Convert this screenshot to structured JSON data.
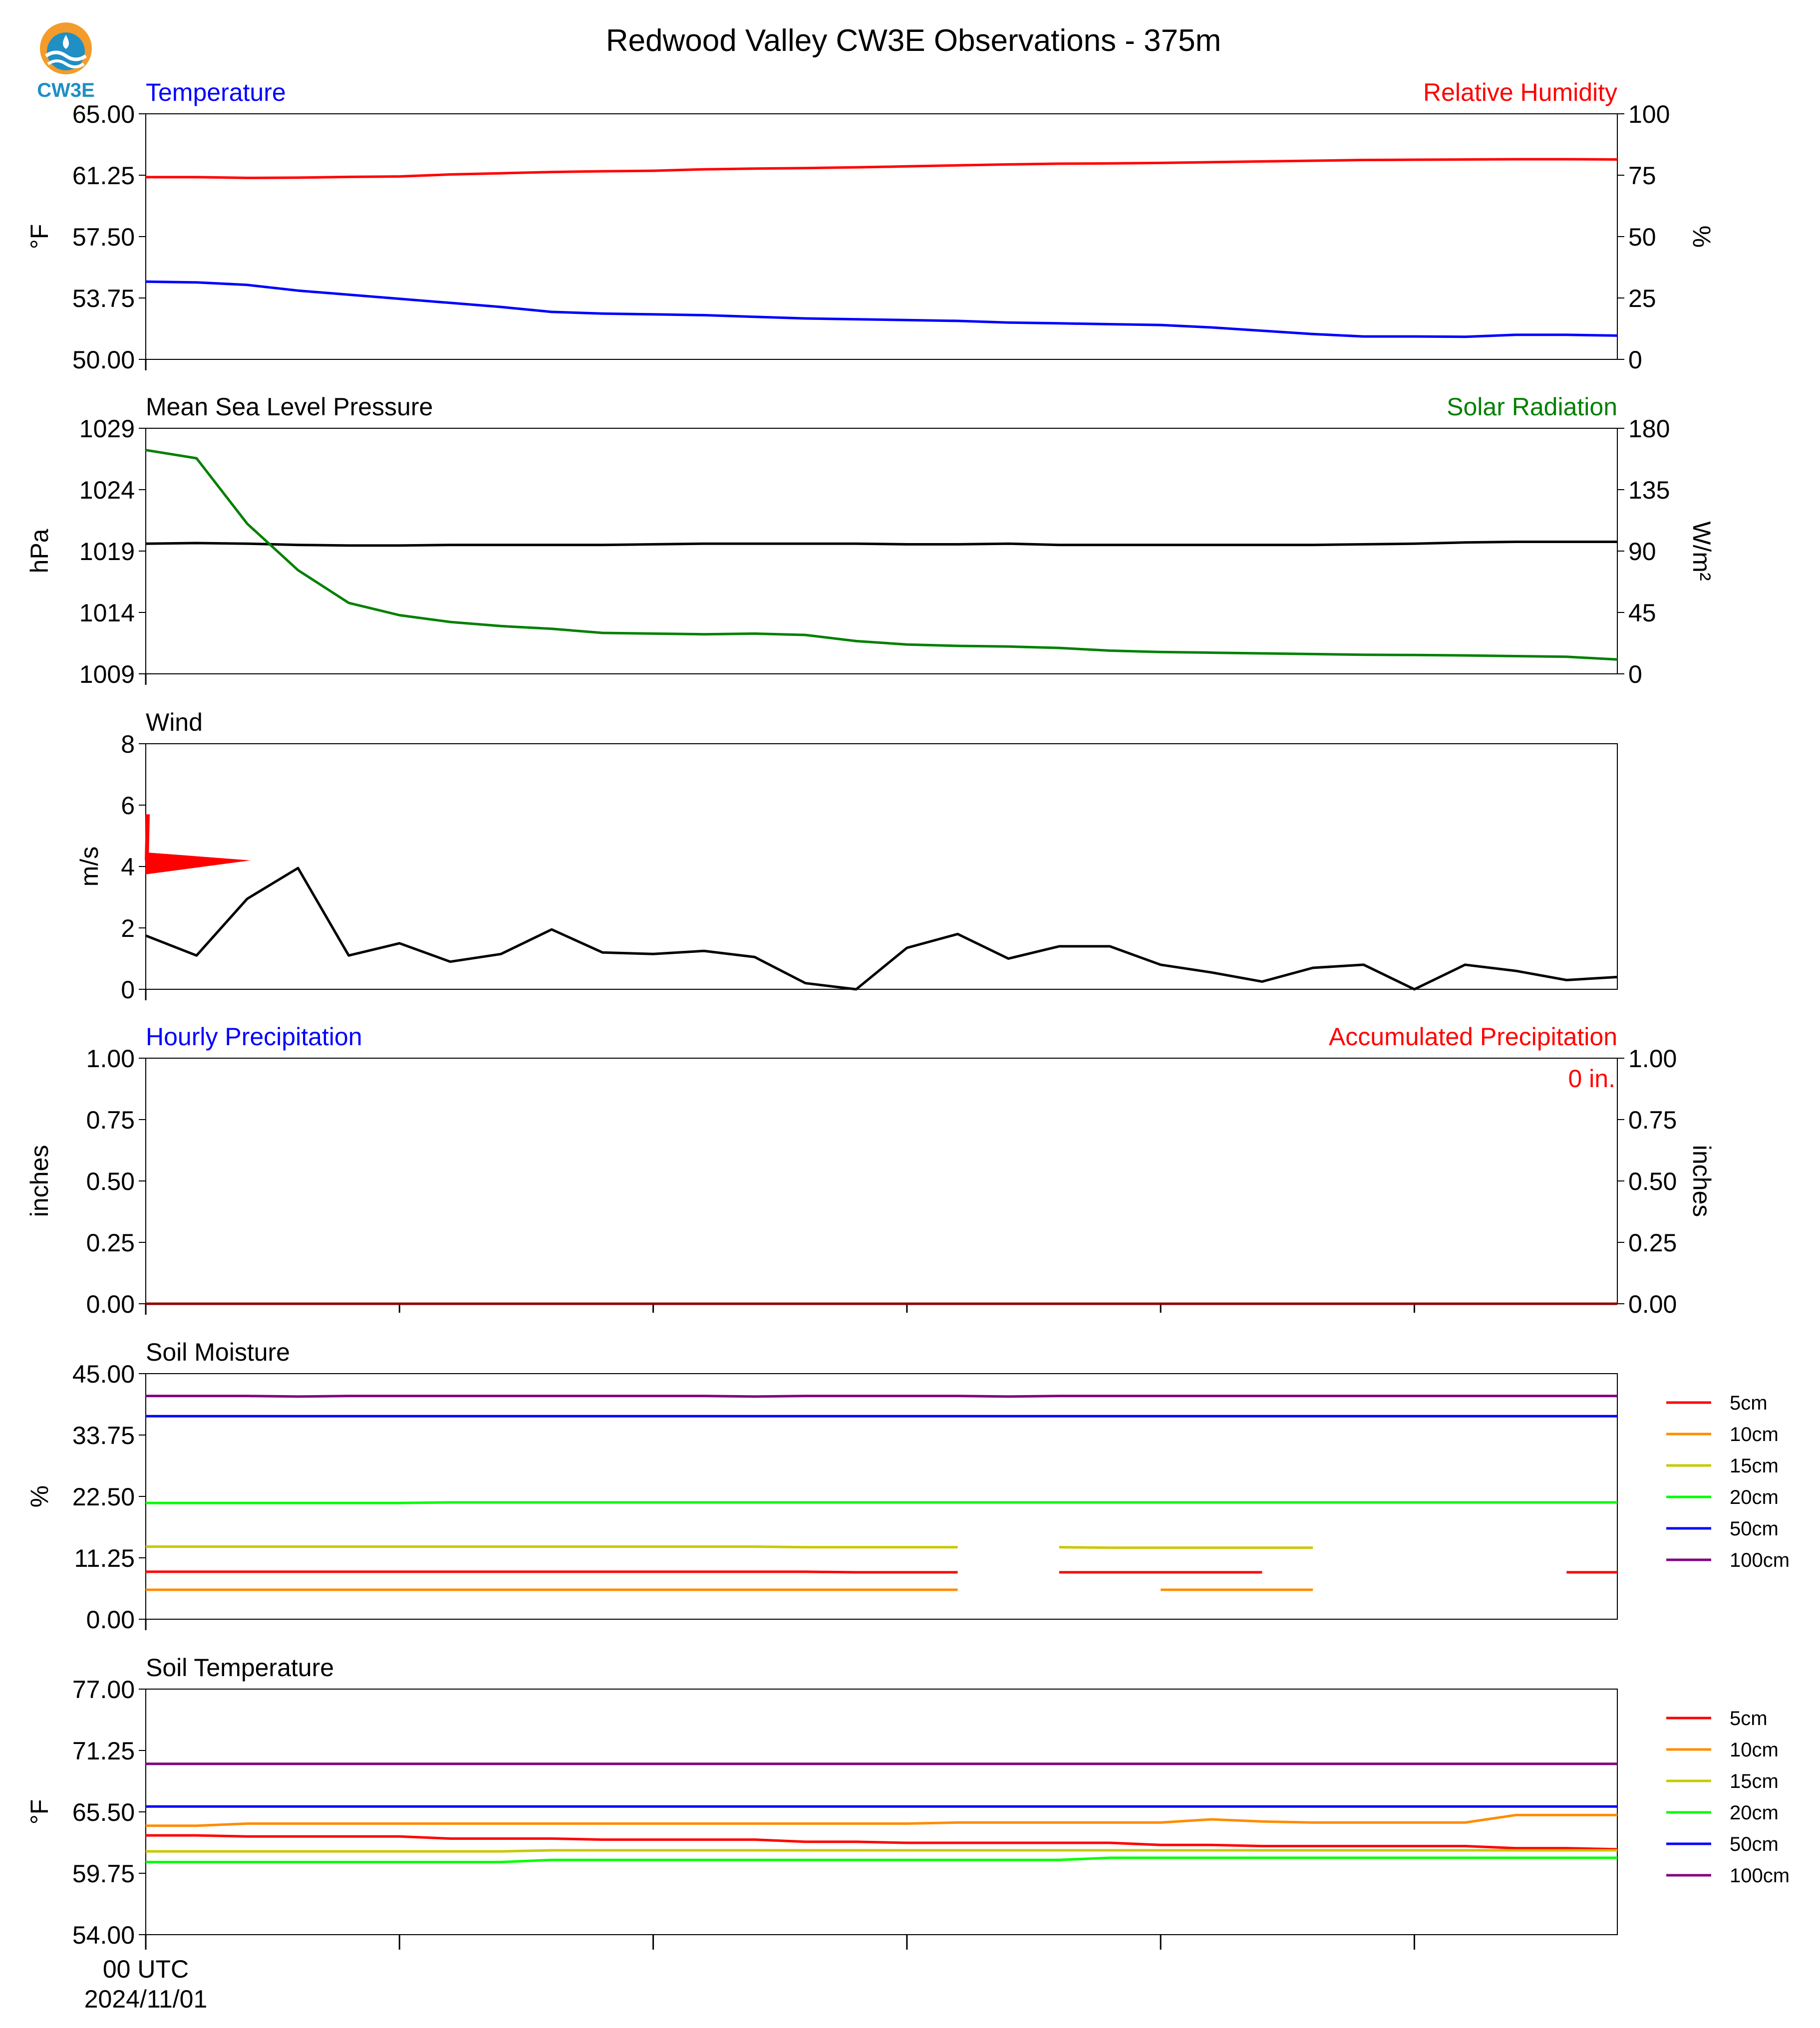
{
  "title": "Redwood Valley CW3E Observations - 375m",
  "logo_text": "CW3E",
  "x_axis": {
    "tick_labels": [
      "00 UTC\n2024/11/01",
      "",
      "",
      "",
      "",
      ""
    ],
    "n_points": 30
  },
  "colors": {
    "blue": "#0000ff",
    "red": "#ff0000",
    "green": "#008000",
    "black": "#000000",
    "soil_5cm": "#ff0000",
    "soil_10cm": "#ff8c00",
    "soil_15cm": "#c8c800",
    "soil_20cm": "#00ff00",
    "soil_50cm": "#0000ff",
    "soil_100cm": "#800080"
  },
  "chart_data": [
    {
      "id": "temp_rh",
      "type": "line",
      "title_left": "Temperature",
      "title_right": "Relative Humidity",
      "ylabel_left": "°F",
      "ylabel_right": "%",
      "ylim_left": [
        50,
        65
      ],
      "ylim_right": [
        0,
        100
      ],
      "yticks_left": [
        "50.00",
        "53.75",
        "57.50",
        "61.25",
        "65.00"
      ],
      "yticks_right": [
        "0",
        "25",
        "50",
        "75",
        "100"
      ],
      "series": [
        {
          "name": "Temperature",
          "axis": "left",
          "color": "#0000ff",
          "values": [
            54.75,
            54.7,
            54.55,
            54.2,
            53.95,
            53.7,
            53.45,
            53.2,
            52.9,
            52.8,
            52.75,
            52.7,
            52.6,
            52.5,
            52.45,
            52.4,
            52.35,
            52.25,
            52.2,
            52.15,
            52.1,
            51.95,
            51.75,
            51.55,
            51.4,
            51.4,
            51.38,
            51.5,
            51.5,
            51.45
          ]
        },
        {
          "name": "Relative Humidity",
          "axis": "right",
          "color": "#ff0000",
          "values": [
            74.2,
            74.2,
            73.9,
            74.0,
            74.3,
            74.5,
            75.3,
            75.8,
            76.3,
            76.6,
            76.8,
            77.4,
            77.7,
            77.9,
            78.2,
            78.6,
            79.0,
            79.4,
            79.7,
            79.8,
            80.0,
            80.3,
            80.6,
            80.9,
            81.2,
            81.3,
            81.4,
            81.5,
            81.5,
            81.4
          ]
        }
      ]
    },
    {
      "id": "mslp_solar",
      "type": "line",
      "title_left": "Mean Sea Level Pressure",
      "title_right": "Solar Radiation",
      "ylabel_left": "hPa",
      "ylabel_right": "W/m²",
      "ylim_left": [
        1009,
        1029
      ],
      "ylim_right": [
        0,
        180
      ],
      "yticks_left": [
        "1009",
        "1014",
        "1019",
        "1024",
        "1029"
      ],
      "yticks_right": [
        "0",
        "45",
        "90",
        "135",
        "180"
      ],
      "series": [
        {
          "name": "Mean Sea Level Pressure",
          "axis": "left",
          "color": "#000000",
          "values": [
            1019.6,
            1019.65,
            1019.6,
            1019.5,
            1019.45,
            1019.45,
            1019.5,
            1019.5,
            1019.5,
            1019.5,
            1019.55,
            1019.6,
            1019.6,
            1019.6,
            1019.6,
            1019.55,
            1019.55,
            1019.6,
            1019.5,
            1019.5,
            1019.5,
            1019.5,
            1019.5,
            1019.5,
            1019.55,
            1019.6,
            1019.7,
            1019.75,
            1019.75,
            1019.75
          ]
        },
        {
          "name": "Solar Radiation",
          "axis": "right",
          "color": "#008000",
          "values": [
            164,
            158,
            110,
            76,
            52,
            43,
            38,
            35,
            33,
            30,
            29.5,
            29,
            29.5,
            28.5,
            24,
            21.5,
            20.5,
            20,
            19,
            17,
            16,
            15.5,
            15,
            14.5,
            14,
            13.8,
            13.5,
            13,
            12.5,
            10.5
          ]
        }
      ]
    },
    {
      "id": "wind",
      "type": "line",
      "title_left": "Wind",
      "ylabel_left": "m/s",
      "ylim_left": [
        0,
        8
      ],
      "yticks_left": [
        "0",
        "2",
        "4",
        "6",
        "8"
      ],
      "series": [
        {
          "name": "Wind",
          "axis": "left",
          "color": "#000000",
          "values": [
            1.75,
            1.1,
            2.95,
            3.95,
            1.1,
            1.5,
            0.9,
            1.15,
            1.95,
            1.2,
            1.15,
            1.25,
            1.05,
            0.2,
            0.0,
            1.35,
            1.8,
            1.0,
            1.4,
            1.4,
            0.8,
            0.55,
            0.25,
            0.7,
            0.8,
            0.0,
            0.8,
            0.6,
            0.3,
            0.4
          ]
        }
      ],
      "barb": {
        "x": 0,
        "speed_y": 4.2,
        "color": "#ff0000"
      }
    },
    {
      "id": "precip",
      "type": "line",
      "title_left": "Hourly Precipitation",
      "title_right": "Accumulated Precipitation",
      "ylabel_left": "inches",
      "ylabel_right": "inches",
      "ylim_left": [
        0,
        1
      ],
      "ylim_right": [
        0,
        1
      ],
      "yticks_left": [
        "0.00",
        "0.25",
        "0.50",
        "0.75",
        "1.00"
      ],
      "yticks_right": [
        "0.00",
        "0.25",
        "0.50",
        "0.75",
        "1.00"
      ],
      "annotation": "0 in.",
      "series": [
        {
          "name": "Hourly Precipitation",
          "axis": "left",
          "color": "#0000ff",
          "values": [
            0,
            0,
            0,
            0,
            0,
            0,
            0,
            0,
            0,
            0,
            0,
            0,
            0,
            0,
            0,
            0,
            0,
            0,
            0,
            0,
            0,
            0,
            0,
            0,
            0,
            0,
            0,
            0,
            0,
            0
          ]
        },
        {
          "name": "Accumulated Precipitation",
          "axis": "right",
          "color": "#8b0000",
          "values": [
            0,
            0,
            0,
            0,
            0,
            0,
            0,
            0,
            0,
            0,
            0,
            0,
            0,
            0,
            0,
            0,
            0,
            0,
            0,
            0,
            0,
            0,
            0,
            0,
            0,
            0,
            0,
            0,
            0,
            0
          ]
        }
      ]
    },
    {
      "id": "soil_moisture",
      "type": "line",
      "title_left": "Soil Moisture",
      "ylabel_left": "%",
      "ylim_left": [
        0,
        45
      ],
      "yticks_left": [
        "0.00",
        "11.25",
        "22.50",
        "33.75",
        "45.00"
      ],
      "legend": [
        "5cm",
        "10cm",
        "15cm",
        "20cm",
        "50cm",
        "100cm"
      ],
      "series": [
        {
          "name": "5cm",
          "axis": "left",
          "color": "#ff0000",
          "values": [
            8.7,
            8.7,
            8.7,
            8.7,
            8.7,
            8.7,
            8.7,
            8.7,
            8.7,
            8.7,
            8.7,
            8.7,
            8.7,
            8.7,
            8.6,
            8.6,
            8.6,
            null,
            8.6,
            8.6,
            8.6,
            8.6,
            8.6,
            null,
            null,
            null,
            null,
            null,
            8.6,
            8.6
          ]
        },
        {
          "name": "10cm",
          "axis": "left",
          "color": "#ff8c00",
          "values": [
            5.4,
            5.4,
            5.4,
            5.4,
            5.4,
            5.4,
            5.4,
            5.4,
            5.4,
            5.4,
            5.4,
            5.4,
            5.4,
            5.4,
            5.4,
            5.4,
            5.4,
            null,
            null,
            null,
            5.4,
            5.4,
            5.4,
            5.4,
            null,
            null,
            null,
            null,
            null,
            null
          ]
        },
        {
          "name": "15cm",
          "axis": "left",
          "color": "#c8c800",
          "values": [
            13.3,
            13.3,
            13.3,
            13.3,
            13.3,
            13.3,
            13.3,
            13.3,
            13.3,
            13.3,
            13.3,
            13.3,
            13.3,
            13.2,
            13.2,
            13.2,
            13.2,
            null,
            13.2,
            13.1,
            13.1,
            13.1,
            13.1,
            13.1,
            null,
            null,
            null,
            null,
            null,
            null
          ]
        },
        {
          "name": "20cm",
          "axis": "left",
          "color": "#00ff00",
          "values": [
            21.3,
            21.3,
            21.3,
            21.3,
            21.3,
            21.3,
            21.4,
            21.4,
            21.4,
            21.4,
            21.4,
            21.4,
            21.4,
            21.4,
            21.4,
            21.4,
            21.4,
            21.4,
            21.4,
            21.4,
            21.4,
            21.4,
            21.4,
            21.4,
            21.4,
            21.4,
            21.4,
            21.4,
            21.4,
            21.4
          ]
        },
        {
          "name": "50cm",
          "axis": "left",
          "color": "#0000ff",
          "values": [
            37.2,
            37.2,
            37.2,
            37.2,
            37.2,
            37.2,
            37.2,
            37.2,
            37.2,
            37.2,
            37.2,
            37.2,
            37.2,
            37.2,
            37.2,
            37.2,
            37.2,
            37.2,
            37.2,
            37.2,
            37.2,
            37.2,
            37.2,
            37.2,
            37.2,
            37.2,
            37.2,
            37.2,
            37.2,
            37.2
          ]
        },
        {
          "name": "100cm",
          "axis": "left",
          "color": "#800080",
          "values": [
            40.9,
            40.9,
            40.9,
            40.8,
            40.9,
            40.9,
            40.9,
            40.9,
            40.9,
            40.9,
            40.9,
            40.9,
            40.8,
            40.9,
            40.9,
            40.9,
            40.9,
            40.8,
            40.9,
            40.9,
            40.9,
            40.9,
            40.9,
            40.9,
            40.9,
            40.9,
            40.9,
            40.9,
            40.9,
            40.9
          ]
        }
      ]
    },
    {
      "id": "soil_temperature",
      "type": "line",
      "title_left": "Soil Temperature",
      "ylabel_left": "°F",
      "ylim_left": [
        54,
        77
      ],
      "yticks_left": [
        "54.00",
        "59.75",
        "65.50",
        "71.25",
        "77.00"
      ],
      "legend": [
        "5cm",
        "10cm",
        "15cm",
        "20cm",
        "50cm",
        "100cm"
      ],
      "series": [
        {
          "name": "5cm",
          "axis": "left",
          "color": "#ff0000",
          "values": [
            63.3,
            63.3,
            63.2,
            63.2,
            63.2,
            63.2,
            63.0,
            63.0,
            63.0,
            62.9,
            62.9,
            62.9,
            62.9,
            62.7,
            62.7,
            62.6,
            62.6,
            62.6,
            62.6,
            62.6,
            62.4,
            62.4,
            62.3,
            62.3,
            62.3,
            62.3,
            62.3,
            62.1,
            62.1,
            62.0
          ]
        },
        {
          "name": "10cm",
          "axis": "left",
          "color": "#ff8c00",
          "values": [
            64.2,
            64.2,
            64.4,
            64.4,
            64.4,
            64.4,
            64.4,
            64.4,
            64.4,
            64.4,
            64.4,
            64.4,
            64.4,
            64.4,
            64.4,
            64.4,
            64.5,
            64.5,
            64.5,
            64.5,
            64.5,
            64.8,
            64.6,
            64.5,
            64.5,
            64.5,
            64.5,
            65.2,
            65.2,
            65.2
          ]
        },
        {
          "name": "15cm",
          "axis": "left",
          "color": "#c8c800",
          "values": [
            61.8,
            61.8,
            61.8,
            61.8,
            61.8,
            61.8,
            61.8,
            61.8,
            61.9,
            61.9,
            61.9,
            61.9,
            61.9,
            61.9,
            61.9,
            61.9,
            61.9,
            61.9,
            61.9,
            61.9,
            61.9,
            61.9,
            61.9,
            61.9,
            61.9,
            61.9,
            61.9,
            61.9,
            61.9,
            61.9
          ]
        },
        {
          "name": "20cm",
          "axis": "left",
          "color": "#00ff00",
          "values": [
            60.8,
            60.8,
            60.8,
            60.8,
            60.8,
            60.8,
            60.8,
            60.8,
            61.0,
            61.0,
            61.0,
            61.0,
            61.0,
            61.0,
            61.0,
            61.0,
            61.0,
            61.0,
            61.0,
            61.2,
            61.2,
            61.2,
            61.2,
            61.2,
            61.2,
            61.2,
            61.2,
            61.2,
            61.2,
            61.2
          ]
        },
        {
          "name": "50cm",
          "axis": "left",
          "color": "#0000ff",
          "values": [
            66.0,
            66.0,
            66.0,
            66.0,
            66.0,
            66.0,
            66.0,
            66.0,
            66.0,
            66.0,
            66.0,
            66.0,
            66.0,
            66.0,
            66.0,
            66.0,
            66.0,
            66.0,
            66.0,
            66.0,
            66.0,
            66.0,
            66.0,
            66.0,
            66.0,
            66.0,
            66.0,
            66.0,
            66.0,
            66.0
          ]
        },
        {
          "name": "100cm",
          "axis": "left",
          "color": "#800080",
          "values": [
            70.0,
            70.0,
            70.0,
            70.0,
            70.0,
            70.0,
            70.0,
            70.0,
            70.0,
            70.0,
            70.0,
            70.0,
            70.0,
            70.0,
            70.0,
            70.0,
            70.0,
            70.0,
            70.0,
            70.0,
            70.0,
            70.0,
            70.0,
            70.0,
            70.0,
            70.0,
            70.0,
            70.0,
            70.0,
            70.0
          ]
        }
      ]
    }
  ]
}
